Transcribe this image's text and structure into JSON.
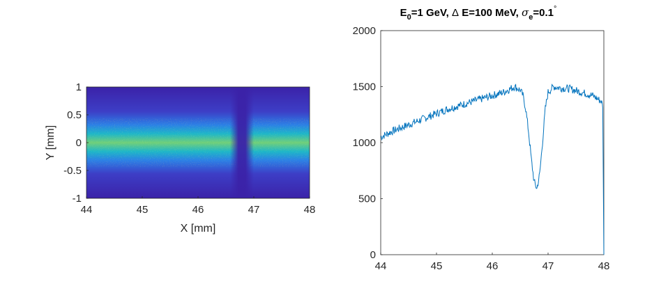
{
  "chart_data": [
    {
      "type": "heatmap",
      "title": "",
      "xlabel": "X [mm]",
      "ylabel": "Y [mm]",
      "xlim": [
        44,
        48
      ],
      "ylim": [
        -1,
        1
      ],
      "x_ticks": [
        "44",
        "45",
        "46",
        "47",
        "48"
      ],
      "y_ticks": [
        "1",
        "0.5",
        "0",
        "-0.5",
        "-1"
      ],
      "colormap": "parula",
      "colors": {
        "background": "#3b1f9e",
        "low": "#3a2fb8",
        "mid": "#1aa7d8",
        "high": "#d8dc32"
      },
      "beam_profile": {
        "center_y": 0,
        "half_width_y": 0.3,
        "gap_center_x": 46.8,
        "gap_width_x": 0.25
      }
    },
    {
      "type": "line",
      "title": "E0=1 GeV, Δ E=100 MeV, σe=0.1°",
      "title_parts": {
        "e": "E",
        "e_sub": "0",
        "rest1": "=1 GeV, ",
        "delta": "Δ",
        "rest2": " E=100 MeV, ",
        "sigma": "σ",
        "sigma_sub": "e",
        "rest3": "=0.1",
        "degree": "°"
      },
      "xlabel": "",
      "ylabel": "",
      "xlim": [
        44,
        48
      ],
      "ylim": [
        0,
        2000
      ],
      "x_ticks": [
        "44",
        "45",
        "46",
        "47",
        "48"
      ],
      "y_ticks": [
        "2000",
        "1500",
        "1000",
        "500",
        "0"
      ],
      "line_color": "#0072bd",
      "series": [
        {
          "x": [
            44.0,
            44.2,
            44.4,
            44.6,
            44.8,
            45.0,
            45.2,
            45.4,
            45.6,
            45.8,
            46.0,
            46.2,
            46.4,
            46.5,
            46.55,
            46.6,
            46.65,
            46.7,
            46.75,
            46.8,
            46.85,
            46.9,
            46.95,
            47.0,
            47.1,
            47.2,
            47.4,
            47.6,
            47.8,
            47.95,
            47.98,
            48.0
          ],
          "values": [
            1050,
            1100,
            1140,
            1180,
            1220,
            1260,
            1300,
            1330,
            1360,
            1390,
            1420,
            1450,
            1500,
            1470,
            1420,
            1300,
            1100,
            850,
            650,
            590,
            720,
            1000,
            1300,
            1450,
            1500,
            1490,
            1480,
            1450,
            1420,
            1370,
            1330,
            0
          ]
        }
      ]
    }
  ]
}
